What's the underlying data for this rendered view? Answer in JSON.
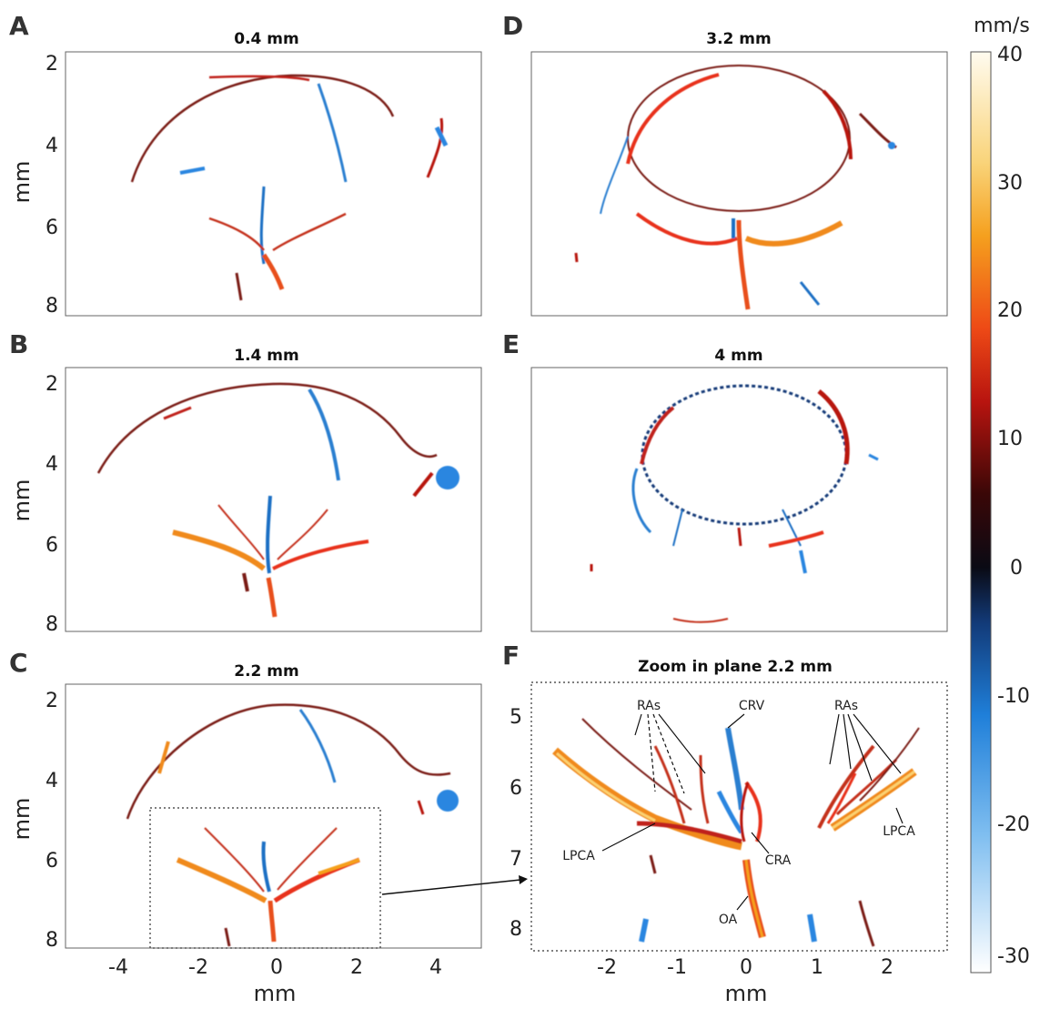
{
  "panels": [
    {
      "letter": "A",
      "title": "0.4 mm"
    },
    {
      "letter": "B",
      "title": "1.4 mm"
    },
    {
      "letter": "C",
      "title": "2.2 mm"
    },
    {
      "letter": "D",
      "title": "3.2 mm"
    },
    {
      "letter": "E",
      "title": "4 mm"
    },
    {
      "letter": "F",
      "title": "Zoom in plane 2.2 mm"
    }
  ],
  "axes": {
    "x_label": "mm",
    "y_label": "mm",
    "left_y_ticks": [
      "2",
      "4",
      "6",
      "8"
    ],
    "left_x_ticks": [
      "-4",
      "-2",
      "0",
      "2",
      "4"
    ],
    "zoom_y_ticks": [
      "5",
      "6",
      "7",
      "8"
    ],
    "zoom_x_ticks": [
      "-2",
      "-1",
      "0",
      "1",
      "2"
    ]
  },
  "colorbar": {
    "unit": "mm/s",
    "ticks": [
      "40",
      "30",
      "20",
      "10",
      "0",
      "-10",
      "-20",
      "-30"
    ],
    "colors": {
      "max": "#fffbef",
      "warm": "#f5a01e",
      "hot": "#e8261a",
      "dark": "#3a0707",
      "zero": "#0a0a14",
      "cool": "#1f7fd9",
      "min": "#ffffff"
    }
  },
  "annotations": {
    "ras_left": "RAs",
    "ras_right": "RAs",
    "crv": "CRV",
    "cra": "CRA",
    "oa": "OA",
    "lpca_left": "LPCA",
    "lpca_right": "LPCA"
  }
}
